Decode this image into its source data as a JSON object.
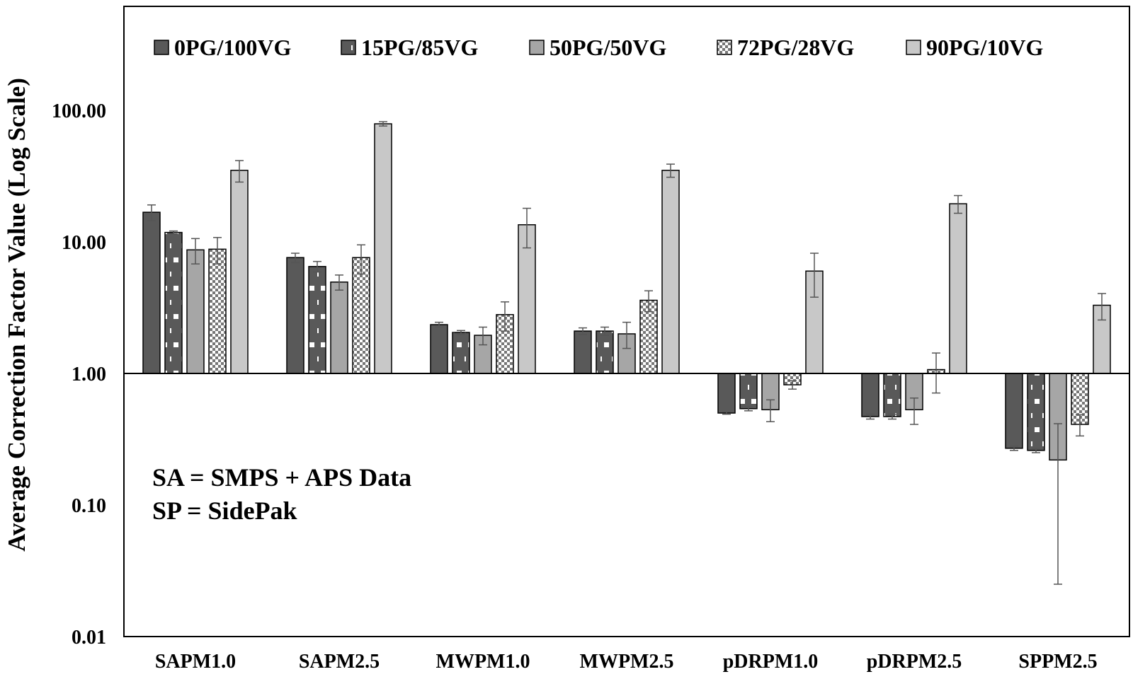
{
  "chart_data": {
    "type": "bar",
    "title": "",
    "xlabel": "",
    "ylabel": "Average Correction Factor Value (Log Scale)",
    "yscale": "log",
    "baseline": 1.0,
    "ylim": [
      0.01,
      500
    ],
    "yticks": [
      0.01,
      0.1,
      1.0,
      10.0,
      100.0
    ],
    "ytick_labels": [
      "0.01",
      "0.10",
      "1.00",
      "10.00",
      "100.00"
    ],
    "grid": false,
    "legend_position": "top",
    "categories": [
      "SAPM1.0",
      "SAPM2.5",
      "MWPM1.0",
      "MWPM2.5",
      "pDRPM1.0",
      "pDRPM2.5",
      "SPPM2.5"
    ],
    "series": [
      {
        "name": "0PG/100VG",
        "color": "#595959",
        "pattern": "solid",
        "values": [
          16.8,
          7.6,
          2.35,
          2.1,
          0.5,
          0.47,
          0.27
        ],
        "errors": [
          2.3,
          0.6,
          0.1,
          0.12,
          0.01,
          0.02,
          0.01
        ]
      },
      {
        "name": "15PG/85VG",
        "color": "#595959",
        "pattern": "dots",
        "values": [
          11.8,
          6.5,
          2.05,
          2.1,
          0.54,
          0.47,
          0.26
        ],
        "errors": [
          0.3,
          0.6,
          0.07,
          0.15,
          0.02,
          0.02,
          0.01
        ]
      },
      {
        "name": "50PG/50VG",
        "color": "#a6a6a6",
        "pattern": "solid",
        "values": [
          8.7,
          4.95,
          1.95,
          2.0,
          0.53,
          0.53,
          0.22
        ],
        "errors": [
          1.9,
          0.65,
          0.3,
          0.45,
          0.1,
          0.12,
          0.195
        ]
      },
      {
        "name": "72PG/28VG",
        "color": "#8c8c8c",
        "pattern": "checker",
        "values": [
          8.8,
          7.6,
          2.8,
          3.6,
          0.82,
          1.07,
          0.41
        ],
        "errors": [
          2.0,
          1.9,
          0.7,
          0.65,
          0.06,
          0.36,
          0.075
        ]
      },
      {
        "name": "90PG/10VG",
        "color": "#c8c8c8",
        "pattern": "solid",
        "values": [
          35,
          79,
          13.5,
          35,
          6.0,
          19.5,
          3.3
        ],
        "errors": [
          6.5,
          3,
          4.5,
          4,
          2.2,
          3,
          0.75
        ]
      }
    ],
    "annotations": [
      "SA = SMPS + APS Data",
      "SP = SidePak"
    ]
  }
}
